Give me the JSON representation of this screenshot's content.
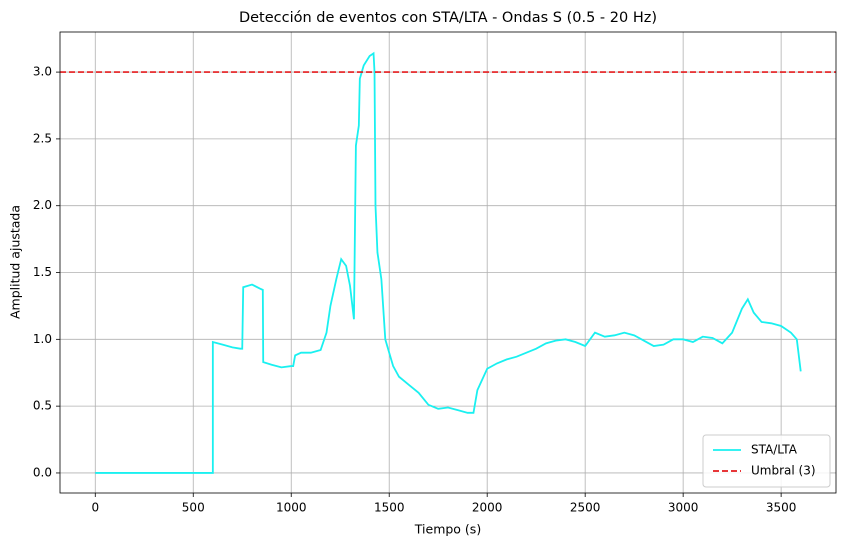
{
  "chart_data": {
    "type": "line",
    "title": "Detección de eventos con STA/LTA - Ondas S (0.5 - 20 Hz)",
    "x_label": "Tiempo (s)",
    "y_label": "Amplitud ajustada",
    "x": [
      0,
      590,
      600,
      600,
      650,
      700,
      740,
      750,
      755,
      800,
      840,
      855,
      857,
      900,
      950,
      1000,
      1010,
      1020,
      1050,
      1100,
      1150,
      1180,
      1200,
      1230,
      1255,
      1280,
      1300,
      1320,
      1330,
      1345,
      1350,
      1370,
      1400,
      1420,
      1425,
      1430,
      1440,
      1460,
      1480,
      1500,
      1520,
      1550,
      1600,
      1650,
      1700,
      1750,
      1800,
      1850,
      1900,
      1930,
      1950,
      2000,
      2050,
      2100,
      2150,
      2200,
      2250,
      2300,
      2350,
      2400,
      2450,
      2500,
      2550,
      2600,
      2650,
      2700,
      2750,
      2800,
      2850,
      2900,
      2950,
      3000,
      3050,
      3100,
      3150,
      3200,
      3250,
      3300,
      3330,
      3360,
      3400,
      3450,
      3500,
      3550,
      3580,
      3600
    ],
    "series": [
      {
        "name": "STA/LTA",
        "color": "#1af0f0",
        "values": [
          0,
          0,
          0,
          0.98,
          0.96,
          0.94,
          0.93,
          0.93,
          1.39,
          1.41,
          1.38,
          1.37,
          0.83,
          0.81,
          0.79,
          0.8,
          0.8,
          0.88,
          0.9,
          0.9,
          0.92,
          1.05,
          1.25,
          1.45,
          1.6,
          1.55,
          1.4,
          1.15,
          2.45,
          2.6,
          2.95,
          3.05,
          3.12,
          3.14,
          3.0,
          2.0,
          1.65,
          1.45,
          1.0,
          0.9,
          0.8,
          0.72,
          0.66,
          0.6,
          0.51,
          0.48,
          0.49,
          0.47,
          0.45,
          0.45,
          0.62,
          0.78,
          0.82,
          0.85,
          0.87,
          0.9,
          0.93,
          0.97,
          0.99,
          1.0,
          0.98,
          0.95,
          1.05,
          1.02,
          1.03,
          1.05,
          1.03,
          0.99,
          0.95,
          0.96,
          1.0,
          1.0,
          0.98,
          1.02,
          1.01,
          0.97,
          1.05,
          1.23,
          1.3,
          1.2,
          1.13,
          1.12,
          1.1,
          1.05,
          1.0,
          0.76
        ]
      }
    ],
    "threshold": {
      "name": "Umbral (3)",
      "color": "#e41a1c",
      "value": 3,
      "style": "dashed"
    },
    "xlim": [
      -180,
      3780
    ],
    "ylim": [
      -0.15,
      3.3
    ],
    "xticks": [
      0,
      500,
      1000,
      1500,
      2000,
      2500,
      3000,
      3500
    ],
    "yticks": [
      {
        "value": 0,
        "label": "0.0"
      },
      0.5,
      {
        "value": 1,
        "label": "1.0"
      },
      1.5,
      {
        "value": 2,
        "label": "2.0"
      },
      2.5,
      {
        "value": 3,
        "label": "3.0"
      }
    ],
    "grid": true,
    "legend": "lower right"
  }
}
